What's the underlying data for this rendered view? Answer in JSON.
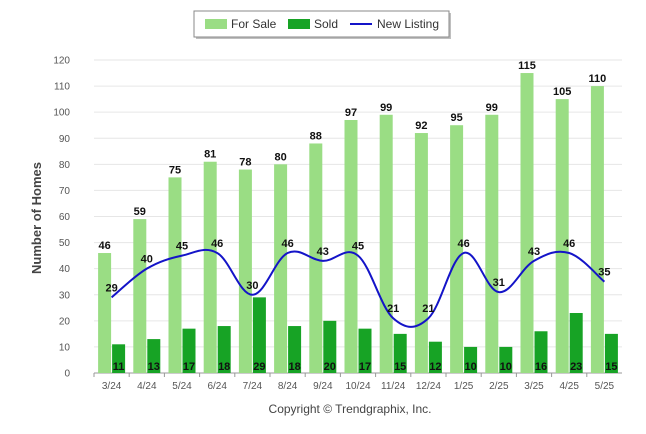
{
  "chart_data": {
    "type": "bar",
    "categories": [
      "3/24",
      "4/24",
      "5/24",
      "6/24",
      "7/24",
      "8/24",
      "9/24",
      "10/24",
      "11/24",
      "12/24",
      "1/25",
      "2/25",
      "3/25",
      "4/25",
      "5/25"
    ],
    "series": [
      {
        "name": "For Sale",
        "type": "bar",
        "color": "#9add84",
        "values": [
          46,
          59,
          75,
          81,
          78,
          80,
          88,
          97,
          99,
          92,
          95,
          99,
          115,
          105,
          110
        ]
      },
      {
        "name": "Sold",
        "type": "bar",
        "color": "#17a325",
        "values": [
          11,
          13,
          17,
          18,
          29,
          18,
          20,
          17,
          15,
          12,
          10,
          10,
          16,
          23,
          15
        ]
      },
      {
        "name": "New Listing",
        "type": "line",
        "color": "#1414c8",
        "values": [
          29,
          40,
          45,
          46,
          30,
          46,
          43,
          45,
          21,
          21,
          46,
          31,
          43,
          46,
          35
        ]
      }
    ],
    "ylabel": "Number of Homes",
    "xlabel": "",
    "ylim": [
      0,
      120
    ],
    "yticks": [
      0,
      10,
      20,
      30,
      40,
      50,
      60,
      70,
      80,
      90,
      100,
      110,
      120
    ],
    "grid": true,
    "legend": "top-center",
    "footer": "Copyright © Trendgraphix, Inc."
  }
}
